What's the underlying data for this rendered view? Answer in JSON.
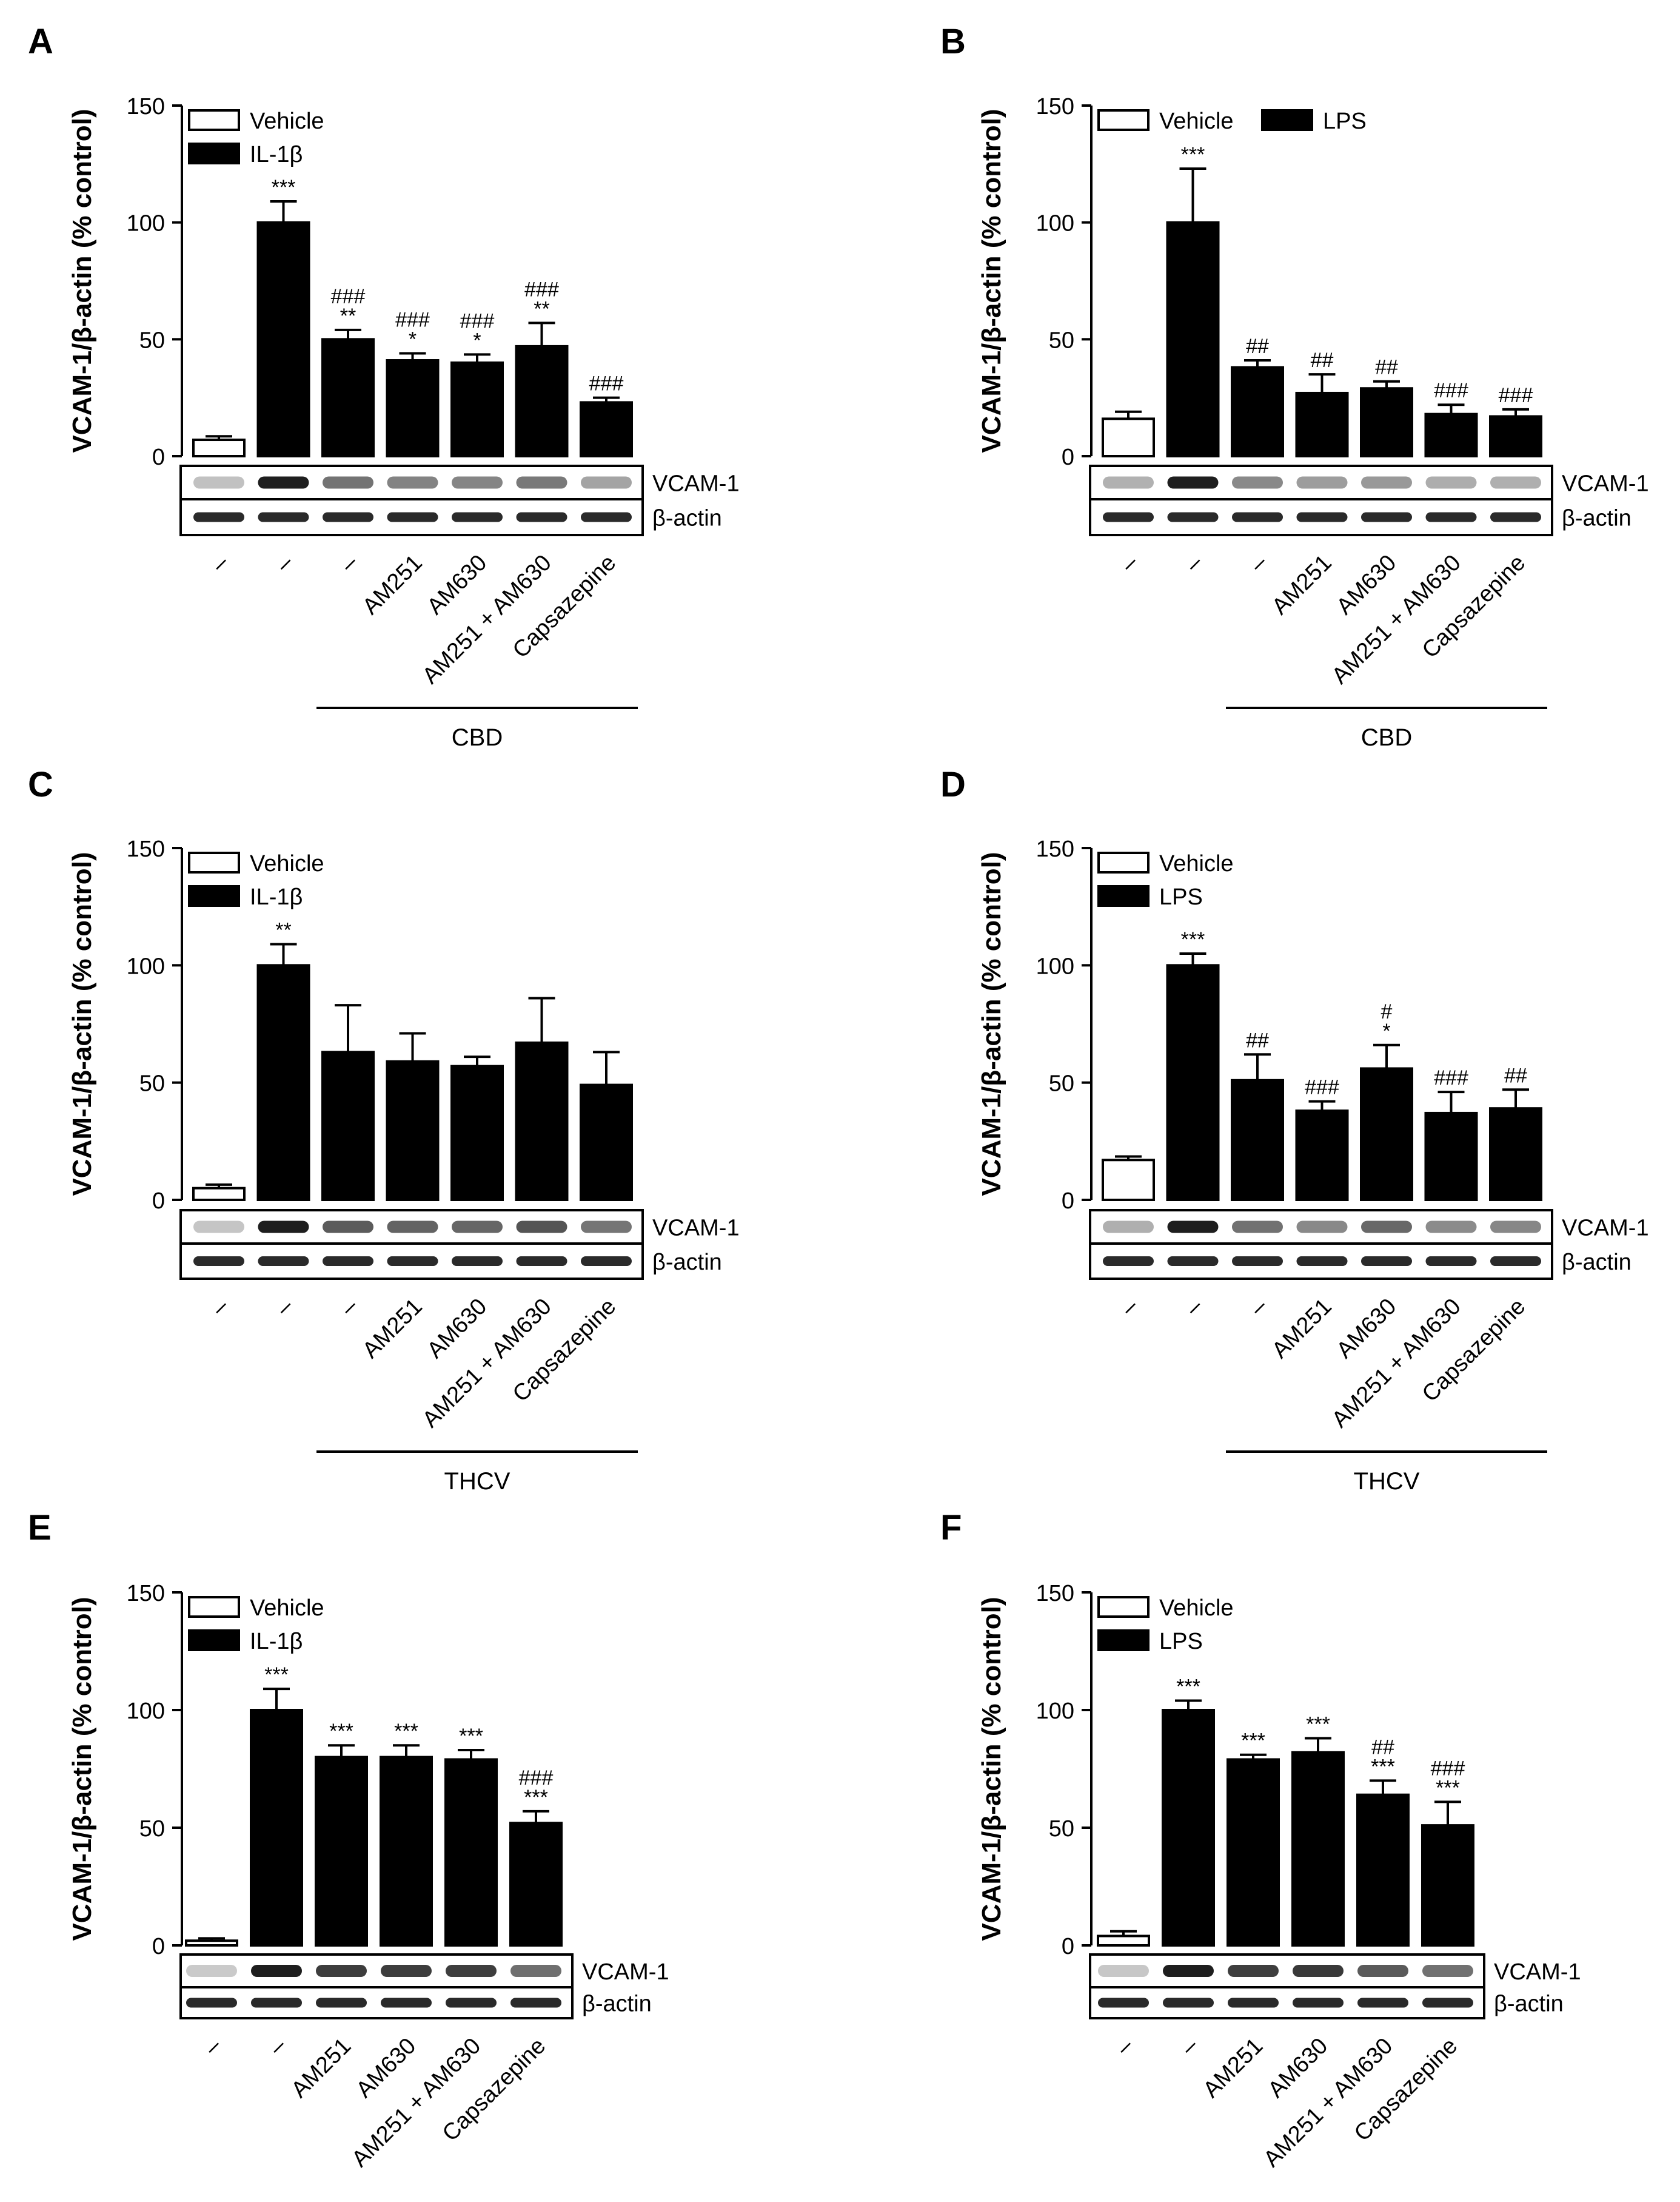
{
  "figure": {
    "y_axis_label": "VCAM-1/β-actin (% control)",
    "blot_labels": [
      "VCAM-1",
      "β-actin"
    ]
  },
  "chart_data": [
    {
      "panel": "A",
      "type": "bar",
      "title": "",
      "xlabel": "",
      "ylabel": "VCAM-1/β-actin (% control)",
      "ylim": [
        0,
        150
      ],
      "yticks": [
        0,
        50,
        100,
        150
      ],
      "legend": [
        "Vehicle",
        "IL-1β"
      ],
      "categories": [
        "–",
        "–",
        "–",
        "AM251",
        "AM630",
        "AM251 + AM630",
        "Capsazepine"
      ],
      "fills": [
        "vehicle",
        "treated",
        "treated",
        "treated",
        "treated",
        "treated",
        "treated"
      ],
      "values": [
        7,
        100,
        50,
        41,
        40,
        47,
        23
      ],
      "errors": [
        1.5,
        9,
        4,
        3,
        3.5,
        10,
        2
      ],
      "annotations": [
        "",
        "***",
        "###\n**",
        "###\n*",
        "###\n*",
        "###\n**",
        "###"
      ],
      "group_label": "CBD",
      "group_start": 2,
      "group_end": 6
    },
    {
      "panel": "B",
      "type": "bar",
      "title": "",
      "xlabel": "",
      "ylabel": "VCAM-1/β-actin (% control)",
      "ylim": [
        0,
        150
      ],
      "yticks": [
        0,
        50,
        100,
        150
      ],
      "legend": [
        "Vehicle",
        "LPS"
      ],
      "categories": [
        "–",
        "–",
        "–",
        "AM251",
        "AM630",
        "AM251 + AM630",
        "Capsazepine"
      ],
      "fills": [
        "vehicle",
        "treated",
        "treated",
        "treated",
        "treated",
        "treated",
        "treated"
      ],
      "values": [
        16,
        100,
        38,
        27,
        29,
        18,
        17
      ],
      "errors": [
        3,
        23,
        3,
        8,
        3,
        4,
        3
      ],
      "annotations": [
        "",
        "***",
        "##",
        "##",
        "##",
        "###",
        "###"
      ],
      "group_label": "CBD",
      "group_start": 2,
      "group_end": 6
    },
    {
      "panel": "C",
      "type": "bar",
      "title": "",
      "xlabel": "",
      "ylabel": "VCAM-1/β-actin (% control)",
      "ylim": [
        0,
        150
      ],
      "yticks": [
        0,
        50,
        100,
        150
      ],
      "legend": [
        "Vehicle",
        "IL-1β"
      ],
      "categories": [
        "–",
        "–",
        "–",
        "AM251",
        "AM630",
        "AM251 + AM630",
        "Capsazepine"
      ],
      "fills": [
        "vehicle",
        "treated",
        "treated",
        "treated",
        "treated",
        "treated",
        "treated"
      ],
      "values": [
        5,
        100,
        63,
        59,
        57,
        67,
        49
      ],
      "errors": [
        1.5,
        9,
        20,
        12,
        4,
        19,
        14
      ],
      "annotations": [
        "",
        "**",
        "",
        "",
        "",
        "",
        ""
      ],
      "group_label": "THCV",
      "group_start": 2,
      "group_end": 6
    },
    {
      "panel": "D",
      "type": "bar",
      "title": "",
      "xlabel": "",
      "ylabel": "VCAM-1/β-actin (% control)",
      "ylim": [
        0,
        150
      ],
      "yticks": [
        0,
        50,
        100,
        150
      ],
      "legend": [
        "Vehicle",
        "LPS"
      ],
      "categories": [
        "–",
        "–",
        "–",
        "AM251",
        "AM630",
        "AM251 + AM630",
        "Capsazepine"
      ],
      "fills": [
        "vehicle",
        "treated",
        "treated",
        "treated",
        "treated",
        "treated",
        "treated"
      ],
      "values": [
        17,
        100,
        51,
        38,
        56,
        37,
        39
      ],
      "errors": [
        1.5,
        5,
        11,
        4,
        10,
        9,
        8
      ],
      "annotations": [
        "",
        "***",
        "##",
        "###",
        "#\n*",
        "###",
        "##"
      ],
      "group_label": "THCV",
      "group_start": 2,
      "group_end": 6
    },
    {
      "panel": "E",
      "type": "bar",
      "title": "",
      "xlabel": "",
      "ylabel": "VCAM-1/β-actin (% control)",
      "ylim": [
        0,
        150
      ],
      "yticks": [
        0,
        50,
        100,
        150
      ],
      "legend": [
        "Vehicle",
        "IL-1β"
      ],
      "categories": [
        "–",
        "–",
        "AM251",
        "AM630",
        "AM251 + AM630",
        "Capsazepine"
      ],
      "fills": [
        "vehicle",
        "treated",
        "treated",
        "treated",
        "treated",
        "treated"
      ],
      "values": [
        2,
        100,
        80,
        80,
        79,
        52
      ],
      "errors": [
        1,
        9,
        5,
        5,
        4,
        5
      ],
      "annotations": [
        "",
        "***",
        "***",
        "***",
        "***",
        "###\n***"
      ],
      "group_label": "",
      "group_start": null,
      "group_end": null
    },
    {
      "panel": "F",
      "type": "bar",
      "title": "",
      "xlabel": "",
      "ylabel": "VCAM-1/β-actin (% control)",
      "ylim": [
        0,
        150
      ],
      "yticks": [
        0,
        50,
        100,
        150
      ],
      "legend": [
        "Vehicle",
        "LPS"
      ],
      "categories": [
        "–",
        "–",
        "AM251",
        "AM630",
        "AM251 + AM630",
        "Capsazepine"
      ],
      "fills": [
        "vehicle",
        "treated",
        "treated",
        "treated",
        "treated",
        "treated"
      ],
      "values": [
        4,
        100,
        79,
        82,
        64,
        51
      ],
      "errors": [
        2,
        4,
        2,
        6,
        6,
        10
      ],
      "annotations": [
        "",
        "***",
        "***",
        "***",
        "##\n***",
        "###\n***"
      ],
      "group_label": "",
      "group_start": null,
      "group_end": null
    }
  ]
}
